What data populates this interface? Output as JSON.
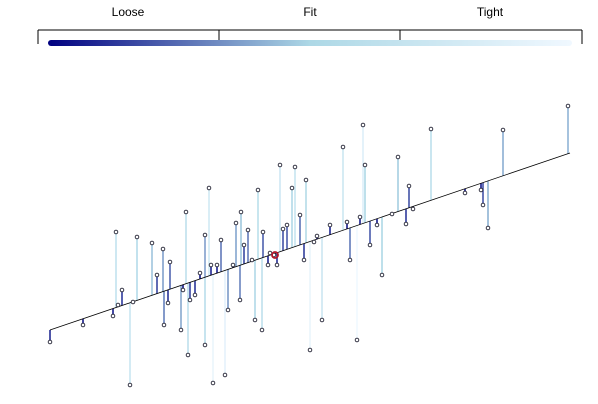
{
  "chart_data": {
    "type": "residual-scatter",
    "scale_labels": [
      "Loose",
      "Fit",
      "Tight"
    ],
    "scale_colors": [
      "#000080",
      "#add8e6",
      "#f0f8ff"
    ],
    "xlim": [
      0,
      520
    ],
    "ylim": [
      0,
      300
    ],
    "fit": {
      "x": [
        0,
        520
      ],
      "y": [
        65,
        242
      ]
    },
    "x": [
      0,
      33,
      63,
      68,
      72,
      66,
      80,
      83,
      87,
      102,
      107,
      113,
      114,
      120,
      118,
      131,
      133,
      136,
      138,
      140,
      145,
      150,
      155,
      155,
      159,
      161,
      163,
      167,
      171,
      175,
      178,
      183,
      186,
      190,
      191,
      194,
      198,
      202,
      205,
      208,
      212,
      213,
      218,
      220,
      224,
      227,
      230,
      233,
      237,
      242,
      245,
      250,
      254,
      256,
      260,
      264,
      267,
      272,
      280,
      293,
      297,
      300,
      307,
      310,
      313,
      315,
      320,
      327,
      332,
      342,
      348,
      356,
      359,
      363,
      381,
      415,
      431,
      433,
      438,
      453,
      518
    ],
    "y": [
      53,
      70,
      79,
      90,
      105,
      163,
      10,
      93,
      158,
      152,
      120,
      146,
      70,
      133,
      92,
      65,
      105,
      183,
      40,
      95,
      100,
      122,
      160,
      50,
      207,
      130,
      12,
      130,
      155,
      20,
      85,
      130,
      172,
      95,
      183,
      150,
      165,
      135,
      75,
      205,
      65,
      163,
      130,
      142,
      140,
      130,
      230,
      166,
      170,
      207,
      228,
      180,
      135,
      215,
      45,
      153,
      159,
      75,
      170,
      248,
      173,
      135,
      55,
      178,
      270,
      230,
      150,
      170,
      120,
      181,
      238,
      171,
      209,
      186,
      266,
      202,
      205,
      190,
      167,
      265,
      289
    ],
    "highlight": {
      "x": 225,
      "y": 140,
      "color": "#b2182b"
    }
  }
}
